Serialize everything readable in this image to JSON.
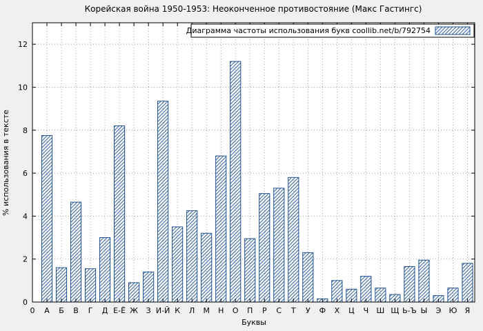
{
  "chart_data": {
    "type": "bar",
    "title": "Корейская война 1950-1953: Неоконченное противостояние (Макс Гастингс)",
    "legend": "Диаграмма частоты использования букв coollib.net/b/792754",
    "xlabel": "Буквы",
    "ylabel": "% использования в тексте",
    "x_first_tick": "0",
    "categories": [
      "А",
      "Б",
      "В",
      "Г",
      "Д",
      "Е-Ё",
      "Ж",
      "З",
      "И-Й",
      "К",
      "Л",
      "М",
      "Н",
      "О",
      "П",
      "Р",
      "С",
      "Т",
      "У",
      "Ф",
      "Х",
      "Ц",
      "Ч",
      "Ш",
      "Щ",
      "Ь-Ъ",
      "Ы",
      "Э",
      "Ю",
      "Я"
    ],
    "values": [
      7.75,
      1.6,
      4.65,
      1.55,
      3.0,
      8.2,
      0.9,
      1.4,
      9.35,
      3.5,
      4.25,
      3.2,
      6.8,
      11.2,
      2.95,
      5.05,
      5.3,
      5.8,
      2.3,
      0.15,
      1.0,
      0.6,
      1.2,
      0.65,
      0.35,
      1.65,
      1.95,
      0.3,
      0.65,
      1.8
    ],
    "yticks": [
      0,
      2,
      4,
      6,
      8,
      10,
      12
    ],
    "ylim": [
      0,
      13
    ],
    "grid": true,
    "legend_position": "top-right",
    "bar_color": "#1f4e8c",
    "hatch_color": "#3465a4",
    "legend_text_color": "#00008b",
    "grid_color": "#9a9a9a",
    "hatch": "diagonal"
  }
}
